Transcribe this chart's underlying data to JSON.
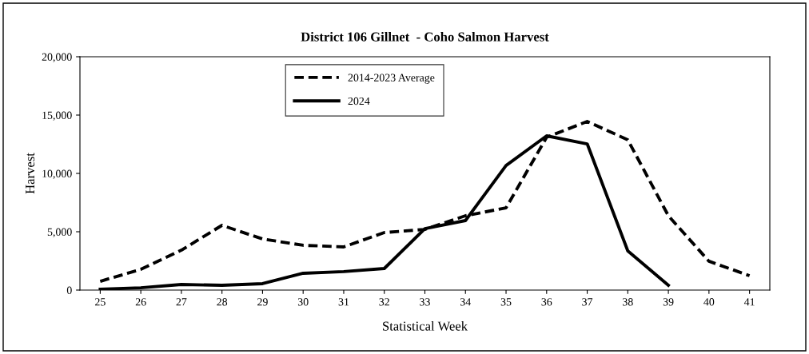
{
  "chart_data": {
    "type": "line",
    "title": "District 106 Gillnet  - Coho Salmon Harvest",
    "xlabel": "Statistical Week",
    "ylabel": "Harvest",
    "categories": [
      "25",
      "26",
      "27",
      "28",
      "29",
      "30",
      "31",
      "32",
      "33",
      "34",
      "35",
      "36",
      "37",
      "38",
      "39",
      "40",
      "41"
    ],
    "series": [
      {
        "name": "2014-2023 Average",
        "color": "#000000",
        "line_style": "dashed",
        "values": [
          750,
          1780,
          3420,
          5550,
          4380,
          3840,
          3700,
          4930,
          5200,
          6370,
          7050,
          13100,
          14450,
          12880,
          6370,
          2470,
          1230
        ]
      },
      {
        "name": "2024",
        "color": "#000000",
        "line_style": "solid",
        "values": [
          70,
          200,
          480,
          410,
          550,
          1440,
          1580,
          1850,
          5270,
          5960,
          10680,
          13220,
          12530,
          3360,
          410,
          null,
          null
        ]
      }
    ],
    "ylim": [
      0,
      20000
    ],
    "yticks": [
      {
        "value": 0,
        "label": "0"
      },
      {
        "value": 5000,
        "label": "5,000"
      },
      {
        "value": 10000,
        "label": "10,000"
      },
      {
        "value": 15000,
        "label": "15,000"
      },
      {
        "value": 20000,
        "label": "20,000"
      }
    ],
    "grid": false,
    "legend": "top",
    "marker": "none"
  }
}
